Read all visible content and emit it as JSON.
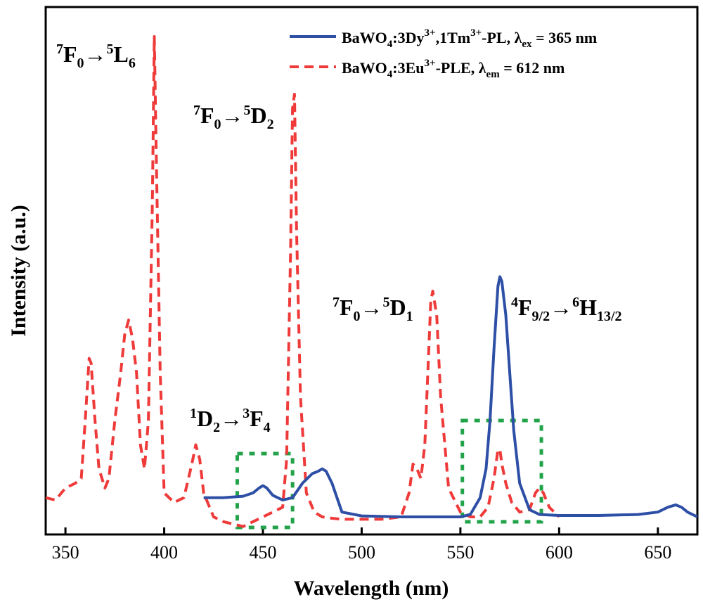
{
  "chart_data": {
    "type": "line",
    "xlabel": "Wavelength (nm)",
    "ylabel": "Intensity (a.u.)",
    "xlim": [
      340,
      670
    ],
    "ylim": [
      0,
      1.0
    ],
    "xticks": [
      "350",
      "400",
      "450",
      "500",
      "550",
      "600",
      "650"
    ],
    "yticks_shown": false,
    "legend_position": "top-right",
    "series": [
      {
        "name": "BaWO4:3Dy3+,1Tm3+-PL, λex = 365 nm",
        "legend": {
          "p1": "BaWO",
          "s1": "4",
          "p2": ":3Dy",
          "s2": "3+",
          "p3": ",1Tm",
          "s3": "3+",
          "p4": "-PL, λ",
          "s4": "ex",
          "p5": " = 365 nm"
        },
        "color": "#2e4fa6",
        "style": "solid",
        "x": [
          420,
          430,
          440,
          445,
          448,
          450,
          452,
          455,
          460,
          465,
          470,
          475,
          478,
          480,
          482,
          485,
          490,
          500,
          520,
          540,
          550,
          555,
          560,
          563,
          565,
          567,
          569,
          570,
          571,
          573,
          575,
          577,
          580,
          585,
          590,
          600,
          620,
          640,
          650,
          655,
          659,
          662,
          665,
          670
        ],
        "y": [
          0.04,
          0.04,
          0.043,
          0.05,
          0.06,
          0.065,
          0.06,
          0.045,
          0.035,
          0.04,
          0.07,
          0.09,
          0.095,
          0.1,
          0.095,
          0.07,
          0.01,
          0.002,
          0.0,
          0.0,
          0.0,
          0.005,
          0.04,
          0.1,
          0.2,
          0.35,
          0.48,
          0.5,
          0.49,
          0.42,
          0.3,
          0.18,
          0.07,
          0.015,
          0.005,
          0.003,
          0.003,
          0.005,
          0.01,
          0.02,
          0.025,
          0.02,
          0.01,
          0.0
        ]
      },
      {
        "name": "BaWO4:3Eu3+-PLE, λem = 612 nm",
        "legend": {
          "p1": "BaWO",
          "s1": "4",
          "p2": ":3Eu",
          "s2": "3+",
          "p3": "-PLE, λ",
          "s4": "em",
          "p5": " = 612 nm"
        },
        "color": "#ef3a3a",
        "style": "dashed",
        "x": [
          340,
          345,
          350,
          355,
          358,
          360,
          362,
          363,
          365,
          367,
          370,
          372,
          375,
          378,
          380,
          382,
          384,
          386,
          388,
          390,
          392,
          394,
          395,
          396,
          398,
          400,
          405,
          410,
          414,
          416,
          418,
          420,
          425,
          430,
          435,
          440,
          445,
          450,
          455,
          460,
          462,
          464,
          465,
          466,
          467,
          469,
          472,
          476,
          480,
          485,
          490,
          500,
          510,
          520,
          524,
          526,
          528,
          530,
          532,
          534,
          535,
          536,
          538,
          540,
          544,
          550,
          555,
          560,
          564,
          567,
          569,
          570,
          571,
          573,
          576,
          580,
          585,
          588,
          590,
          592,
          595,
          600
        ],
        "y": [
          0.04,
          0.035,
          0.06,
          0.07,
          0.08,
          0.2,
          0.33,
          0.32,
          0.2,
          0.1,
          0.06,
          0.08,
          0.2,
          0.3,
          0.38,
          0.41,
          0.37,
          0.3,
          0.15,
          0.1,
          0.2,
          0.65,
          1.0,
          0.75,
          0.3,
          0.05,
          0.03,
          0.04,
          0.11,
          0.15,
          0.12,
          0.05,
          0.0,
          -0.01,
          -0.015,
          -0.02,
          -0.01,
          0.0,
          0.01,
          0.02,
          0.12,
          0.55,
          0.85,
          0.88,
          0.6,
          0.25,
          0.05,
          0.01,
          0.0,
          -0.003,
          -0.005,
          -0.005,
          -0.005,
          0.0,
          0.05,
          0.11,
          0.1,
          0.08,
          0.15,
          0.35,
          0.45,
          0.47,
          0.42,
          0.25,
          0.06,
          0.01,
          0.0,
          0.0,
          0.02,
          0.08,
          0.14,
          0.14,
          0.11,
          0.07,
          0.03,
          0.01,
          0.015,
          0.05,
          0.06,
          0.05,
          0.02,
          0.0
        ]
      }
    ],
    "annotations": [
      {
        "id": "L6",
        "pre": "7",
        "A": "F",
        "Asub": "0",
        "arrow": "→",
        "post": "5",
        "B": "L",
        "Bsub": "6"
      },
      {
        "id": "D2",
        "pre": "7",
        "A": "F",
        "Asub": "0",
        "arrow": "→",
        "post": "5",
        "B": "D",
        "Bsub": "2"
      },
      {
        "id": "D1",
        "pre": "7",
        "A": "F",
        "Asub": "0",
        "arrow": "→",
        "post": "5",
        "B": "D",
        "Bsub": "1"
      },
      {
        "id": "F4",
        "pre": "1",
        "A": "D",
        "Asub": "2",
        "arrow": "→",
        "post": "3",
        "B": "F",
        "Bsub": "4"
      },
      {
        "id": "H13",
        "pre": "4",
        "A": "F",
        "Asub": "9/2",
        "arrow": "→",
        "post": "6",
        "B": "H",
        "Bsub": "13/2"
      }
    ],
    "highlight_boxes": [
      {
        "x_range": [
          437,
          465
        ],
        "color": "#22a34a"
      },
      {
        "x_range": [
          551,
          591
        ],
        "color": "#22a34a"
      }
    ]
  }
}
